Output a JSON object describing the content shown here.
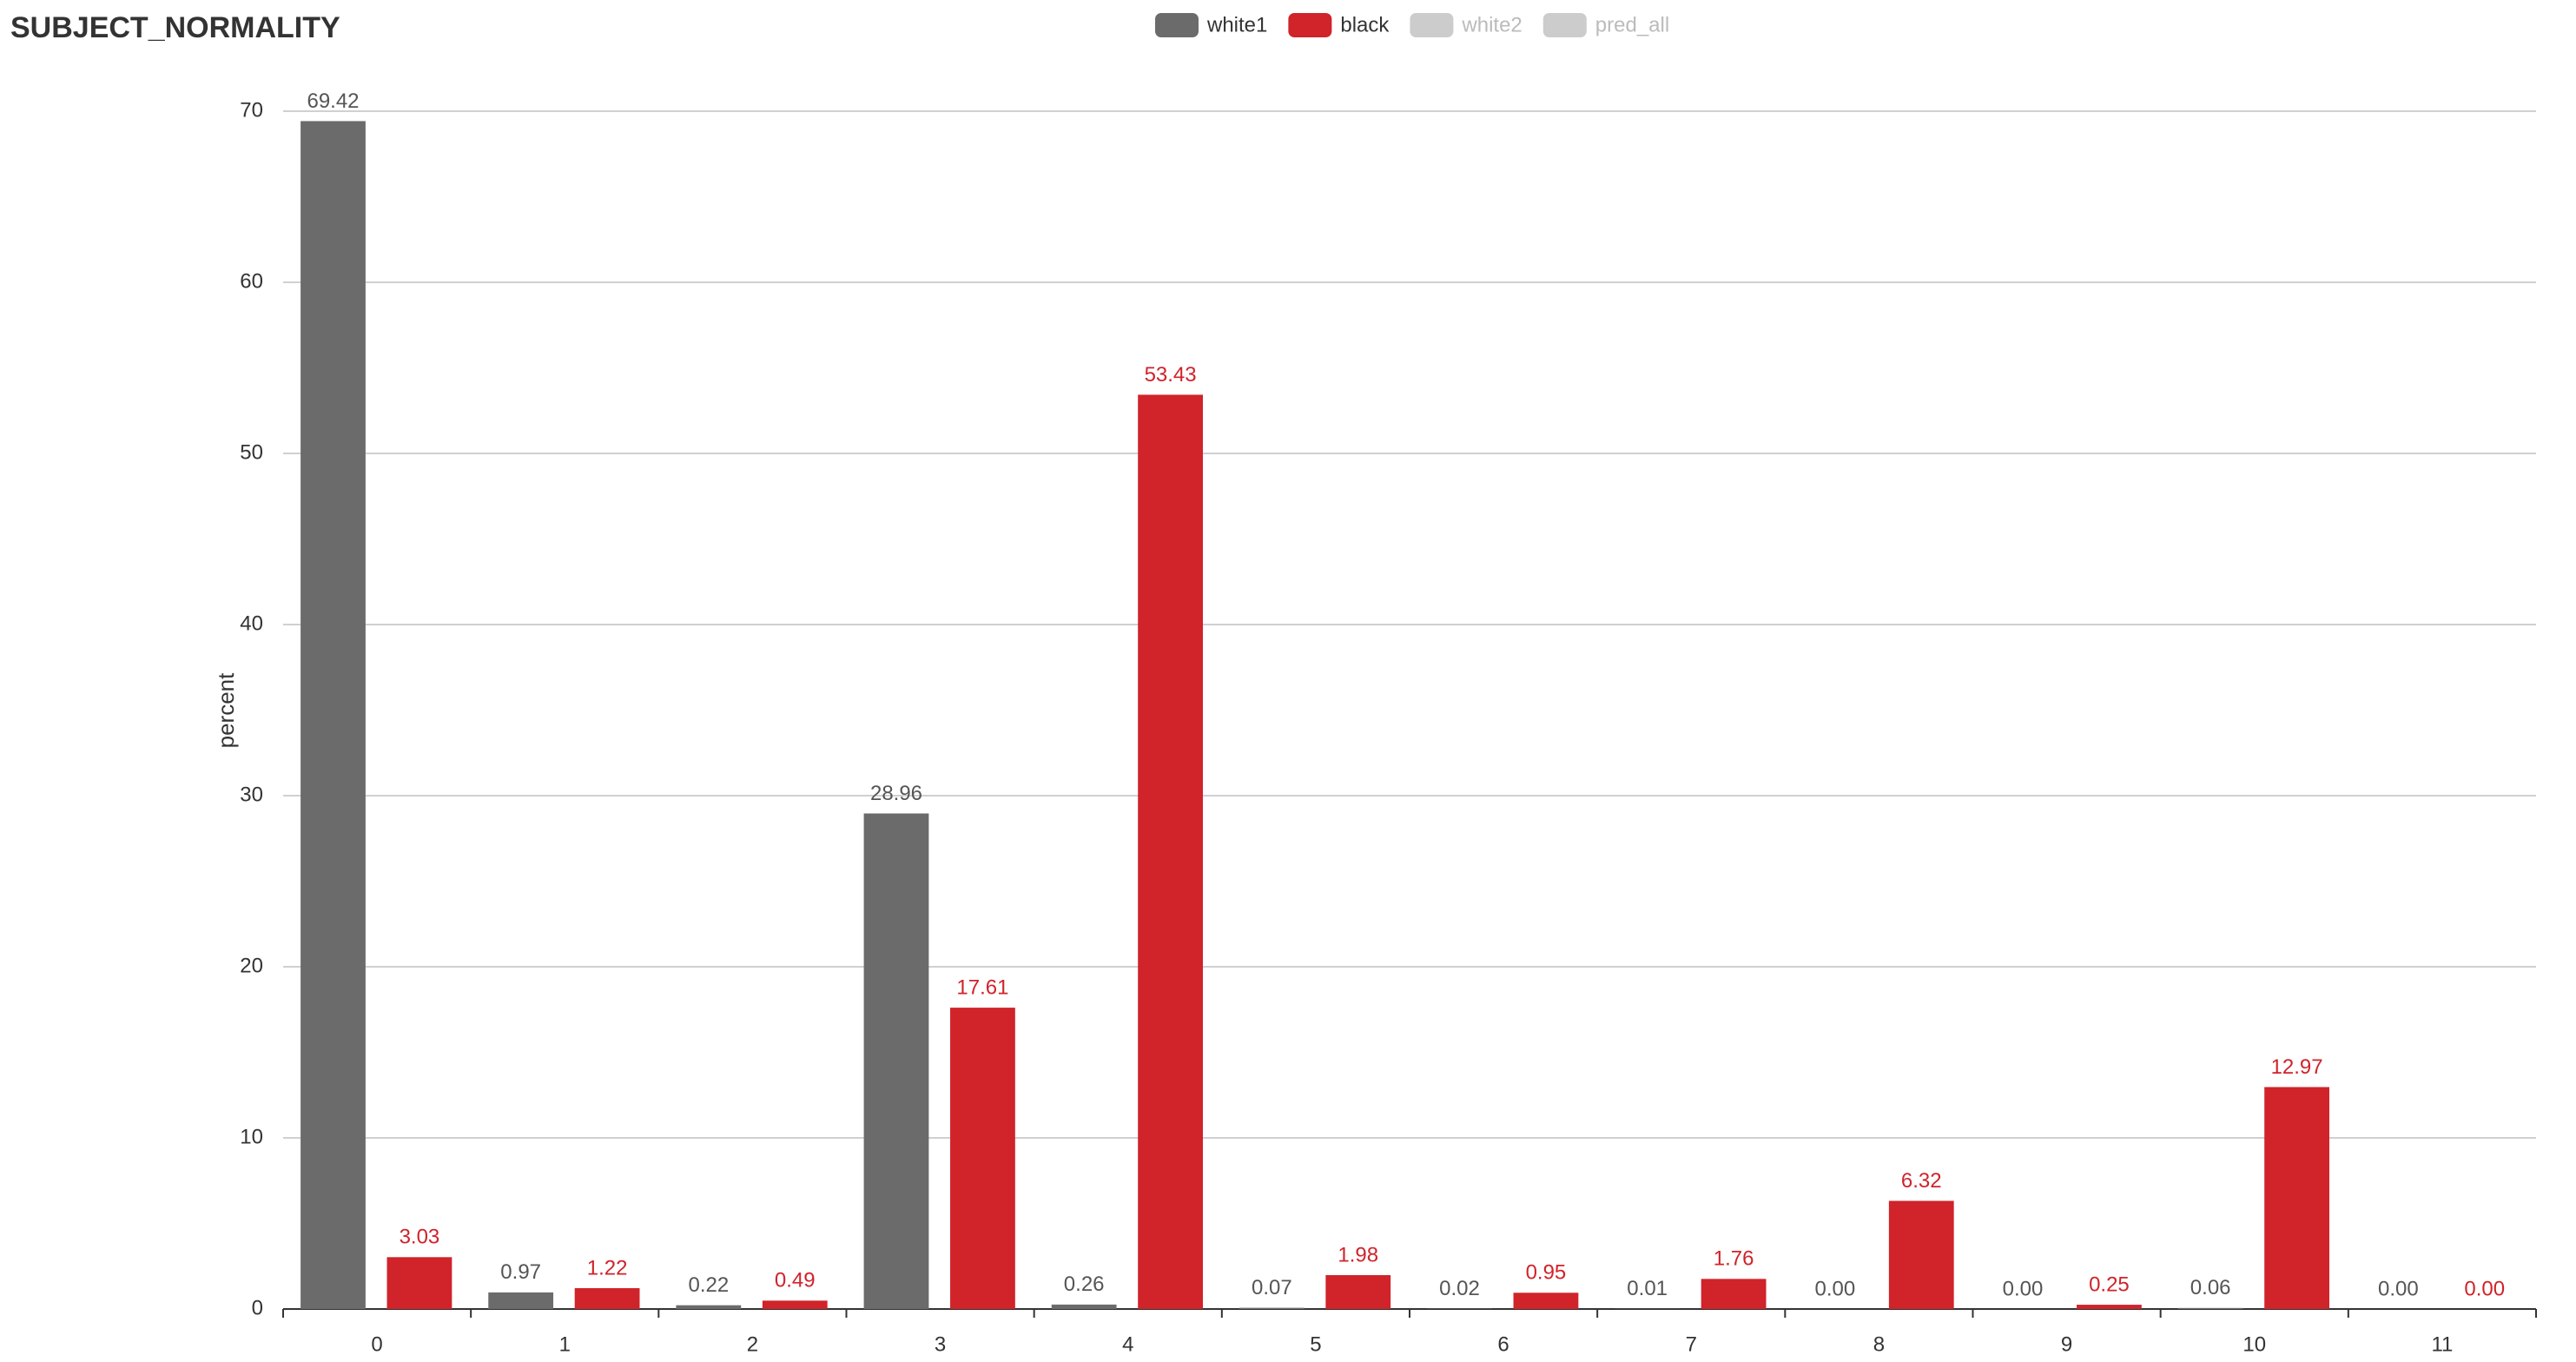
{
  "chart_data": {
    "type": "bar",
    "title": "SUBJECT_NORMALITY",
    "y_label": "percent",
    "categories": [
      "0",
      "1",
      "2",
      "3",
      "4",
      "5",
      "6",
      "7",
      "8",
      "9",
      "10",
      "11"
    ],
    "series": [
      {
        "name": "white1",
        "color": "#6b6b6b",
        "label_color": "#555555",
        "visible": true,
        "values": [
          69.42,
          0.97,
          0.22,
          28.96,
          0.26,
          0.07,
          0.02,
          0.01,
          0,
          0,
          0.06,
          0
        ],
        "value_labels": [
          "69.42",
          "0.97",
          "0.22",
          "28.96",
          "0.26",
          "0.07",
          "0.02",
          "0.01",
          "0.00",
          "0.00",
          "0.06",
          "0.00"
        ]
      },
      {
        "name": "black",
        "color": "#d0232a",
        "label_color": "#d0232a",
        "visible": true,
        "values": [
          3.03,
          1.22,
          0.49,
          17.61,
          53.43,
          1.98,
          0.95,
          1.76,
          6.32,
          0.25,
          12.97,
          0
        ],
        "value_labels": [
          "3.03",
          "1.22",
          "0.49",
          "17.61",
          "53.43",
          "1.98",
          "0.95",
          "1.76",
          "6.32",
          "0.25",
          "12.97",
          "0.00"
        ]
      },
      {
        "name": "white2",
        "color": "#cccccc",
        "visible": false
      },
      {
        "name": "pred_all",
        "color": "#cccccc",
        "visible": false
      }
    ],
    "ylim": [
      0,
      70
    ],
    "yticks": [
      0,
      10,
      20,
      30,
      40,
      50,
      60,
      70
    ],
    "grid": true
  }
}
